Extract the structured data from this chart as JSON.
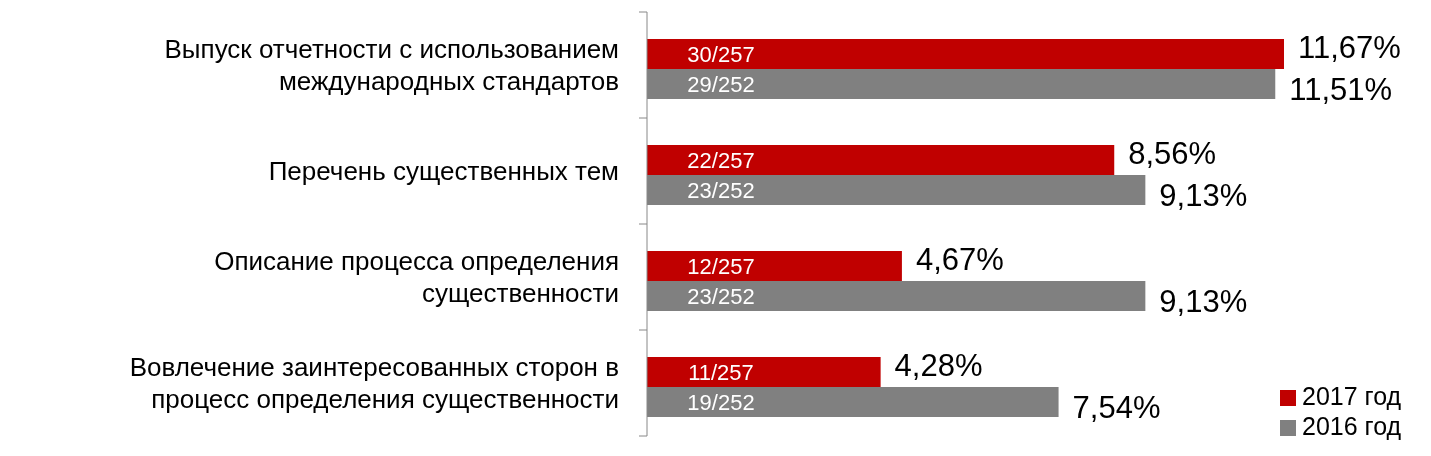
{
  "chart_data": {
    "type": "bar",
    "orientation": "horizontal",
    "legend": "bottom right",
    "categories": [
      "Выпуск отчетности с использованием международных стандартов",
      "Перечень существенных тем",
      "Описание процесса определения существенности",
      "Вовлечение заинтересованных сторон в процесс определения существенности"
    ],
    "series": [
      {
        "name": "2017 год",
        "color": "#c00000",
        "values": [
          11.67,
          8.56,
          4.67,
          4.28
        ],
        "value_labels": [
          "11,67%",
          "8,56%",
          "4,67%",
          "4,28%"
        ]
      },
      {
        "name": "2016 год",
        "color": "#808080",
        "values": [
          11.51,
          9.13,
          9.13,
          7.54
        ],
        "value_labels": [
          "11,51%",
          "9,13%",
          "9,13%",
          "7,54%"
        ]
      }
    ],
    "annotations": [
      {
        "text": "30/257",
        "y": "Выпуск отчетности с использованием международных стандартов"
      },
      {
        "text": "29/252",
        "y": "Выпуск отчетности с использованием международных стандартов"
      },
      {
        "text": "22/257",
        "y": "Перечень существенных тем"
      },
      {
        "text": "23/252",
        "y": "Перечень существенных тем"
      },
      {
        "text": "12/257",
        "y": "Описание процесса определения существенности"
      },
      {
        "text": "23/252",
        "y": "Описание процесса определения существенности"
      },
      {
        "text": "11/257",
        "y": "Вовлечение заинтересованных сторон в процесс определения существенности"
      },
      {
        "text": "19/252",
        "y": "Вовлечение заинтересованных сторон в процесс определения существенности"
      }
    ]
  }
}
